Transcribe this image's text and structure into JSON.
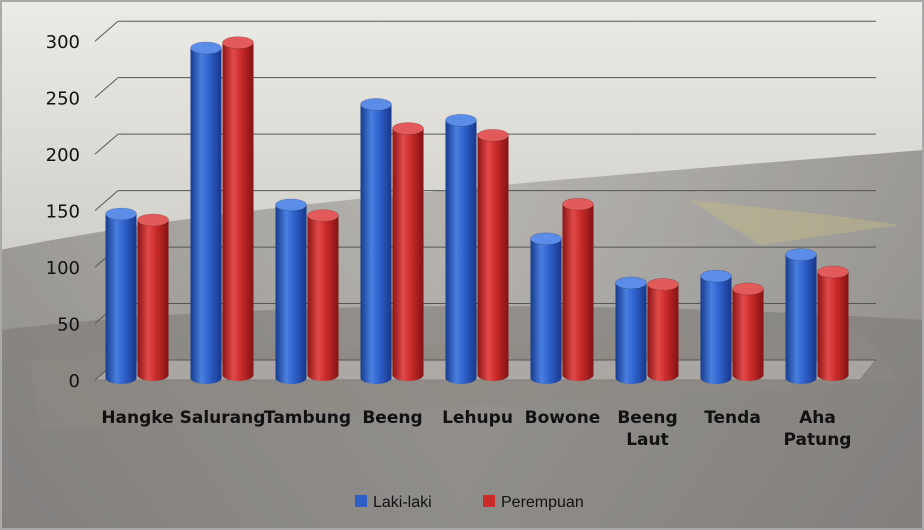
{
  "chart_data": {
    "type": "bar",
    "categories": [
      "Hangke",
      "Salurang",
      "Tambung",
      "Beeng",
      "Lehupu",
      "Bowone",
      "Beeng Laut",
      "Tenda",
      "Aha Patung"
    ],
    "category_lines": [
      [
        "Hangke"
      ],
      [
        "Salurang"
      ],
      [
        "Tambung"
      ],
      [
        "Beeng"
      ],
      [
        "Lehupu"
      ],
      [
        "Bowone"
      ],
      [
        "Beeng",
        "Laut"
      ],
      [
        "Tenda"
      ],
      [
        "Aha",
        "Patung"
      ]
    ],
    "series": [
      {
        "name": "Laki-laki",
        "color": "#2f5ec6",
        "values": [
          147,
          294,
          155,
          244,
          230,
          125,
          86,
          92,
          111
        ]
      },
      {
        "name": "Perempuan",
        "color": "#cc2b2b",
        "values": [
          139,
          296,
          143,
          220,
          214,
          153,
          82,
          78,
          93
        ]
      }
    ],
    "ylim": [
      0,
      300
    ],
    "yticks": [
      0,
      50,
      100,
      150,
      200,
      250,
      300
    ],
    "grid": true,
    "legend": "bottom",
    "title": "",
    "xlabel": "",
    "ylabel": ""
  }
}
